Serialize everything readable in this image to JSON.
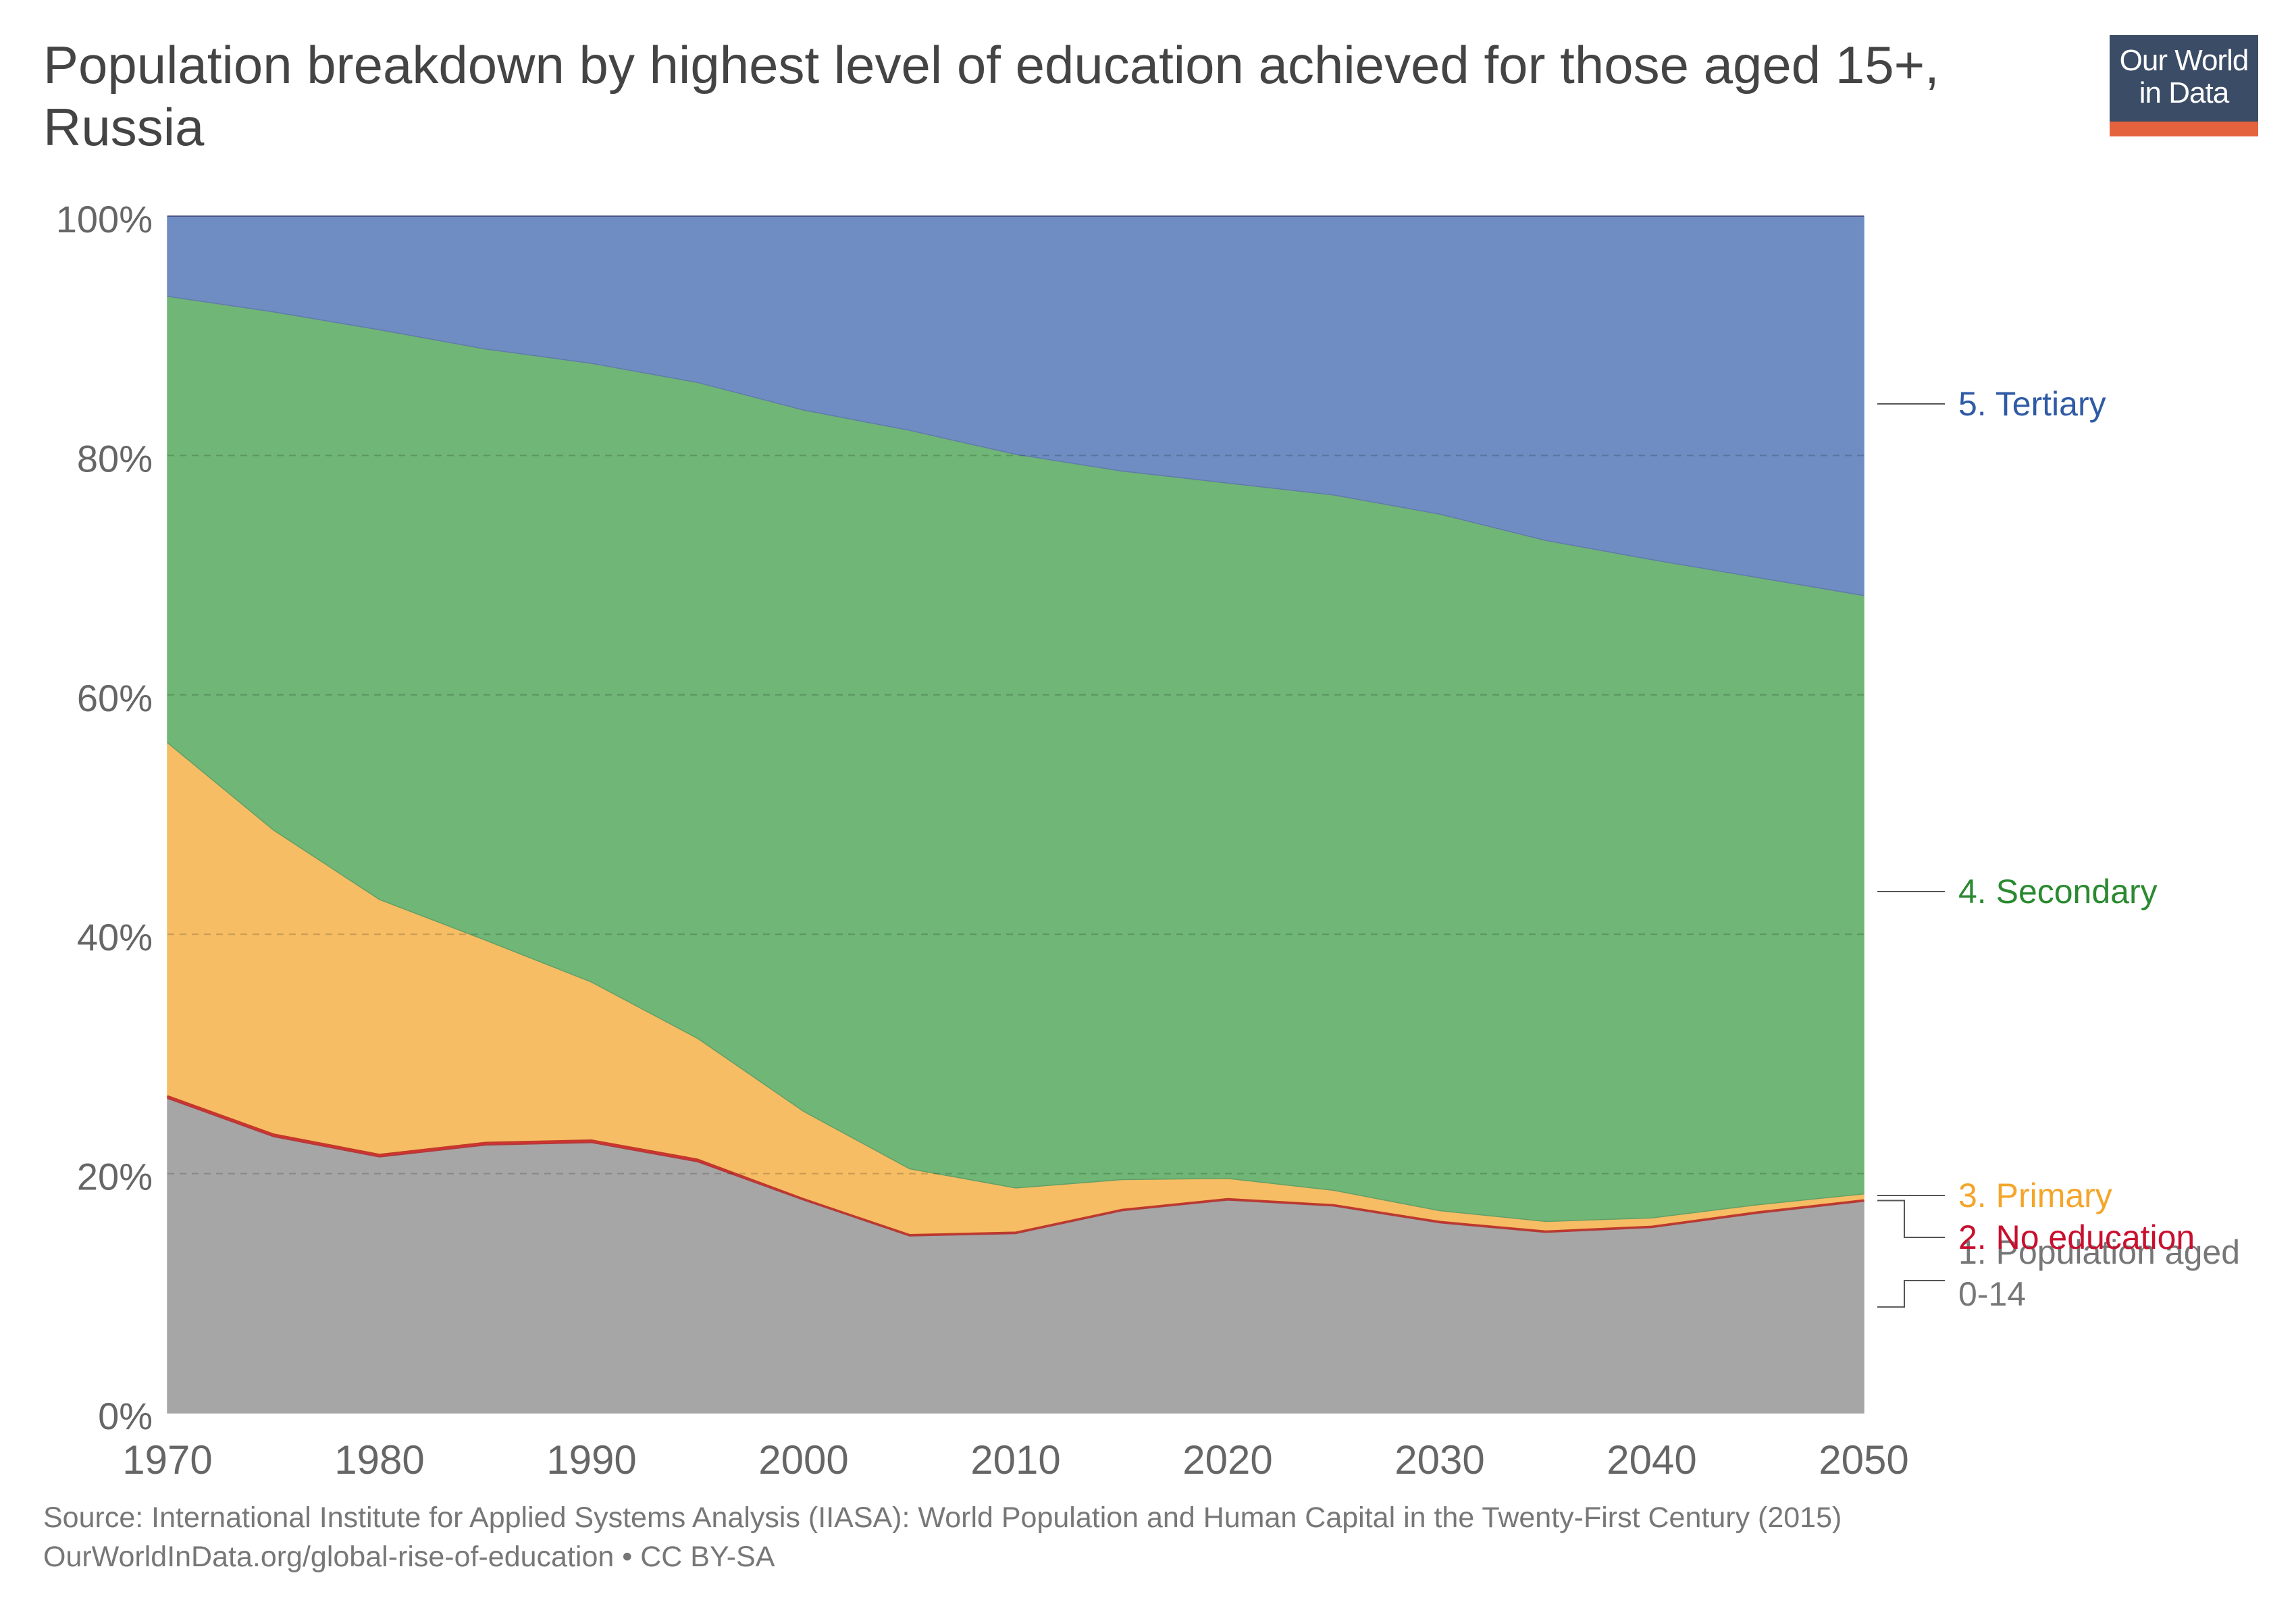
{
  "title": "Population breakdown by highest level of education achieved for those aged 15+, Russia",
  "logo": {
    "line1": "Our World",
    "line2": "in Data",
    "bg_color": "#3b4c66",
    "accent_color": "#e5623e"
  },
  "source": {
    "line1": "Source: International Institute for Applied Systems Analysis (IIASA): World Population and Human Capital in the Twenty-First Century (2015)",
    "line2": "OurWorldInData.org/global-rise-of-education • CC BY-SA"
  },
  "chart_data": {
    "type": "area",
    "stacked": true,
    "x": [
      1970,
      1975,
      1980,
      1985,
      1990,
      1995,
      2000,
      2005,
      2010,
      2015,
      2020,
      2025,
      2030,
      2035,
      2040,
      2045,
      2050
    ],
    "x_ticks": [
      "1970",
      "1980",
      "1990",
      "2000",
      "2010",
      "2020",
      "2030",
      "2040",
      "2050"
    ],
    "y_ticks": [
      "0%",
      "20%",
      "40%",
      "60%",
      "80%",
      "100%"
    ],
    "ylim": [
      0,
      100
    ],
    "xlim": [
      1970,
      2050
    ],
    "grid": "horizontal dashed",
    "legend": "right, labels at series ends",
    "series": [
      {
        "name": "1. Population aged 0-14",
        "color": "#a6a6a6",
        "label_color": "#777777",
        "values": [
          26.3,
          23.1,
          21.4,
          22.4,
          22.6,
          21.0,
          17.8,
          14.8,
          15.0,
          16.9,
          17.8,
          17.3,
          15.9,
          15.1,
          15.5,
          16.7,
          17.7
        ]
      },
      {
        "name": "2. No education",
        "color": "#d73030",
        "label_color": "#c8102e",
        "values": [
          0.2,
          0.2,
          0.2,
          0.2,
          0.2,
          0.2,
          0.1,
          0.1,
          0.1,
          0.1,
          0.1,
          0.1,
          0.1,
          0.1,
          0.1,
          0.1,
          0.1
        ]
      },
      {
        "name": "3. Primary",
        "color": "#f6bd64",
        "label_color": "#f4a52b",
        "values": [
          29.5,
          25.4,
          21.3,
          16.9,
          13.2,
          10.1,
          7.3,
          5.5,
          3.7,
          2.5,
          1.7,
          1.2,
          0.9,
          0.8,
          0.7,
          0.6,
          0.5
        ]
      },
      {
        "name": "4. Secondary",
        "color": "#70b676",
        "label_color": "#2b8a31",
        "values": [
          37.3,
          43.3,
          47.6,
          49.4,
          51.7,
          54.8,
          58.6,
          61.7,
          61.3,
          59.2,
          58.1,
          58.1,
          58.2,
          56.9,
          55.0,
          52.4,
          50.0
        ]
      },
      {
        "name": "5. Tertiary",
        "color": "#6f8dc3",
        "label_color": "#2f5aa5",
        "values": [
          6.7,
          8.0,
          9.5,
          11.1,
          12.3,
          13.9,
          16.2,
          17.9,
          19.9,
          21.3,
          22.3,
          23.3,
          24.9,
          27.1,
          28.7,
          30.2,
          31.7
        ]
      }
    ]
  }
}
